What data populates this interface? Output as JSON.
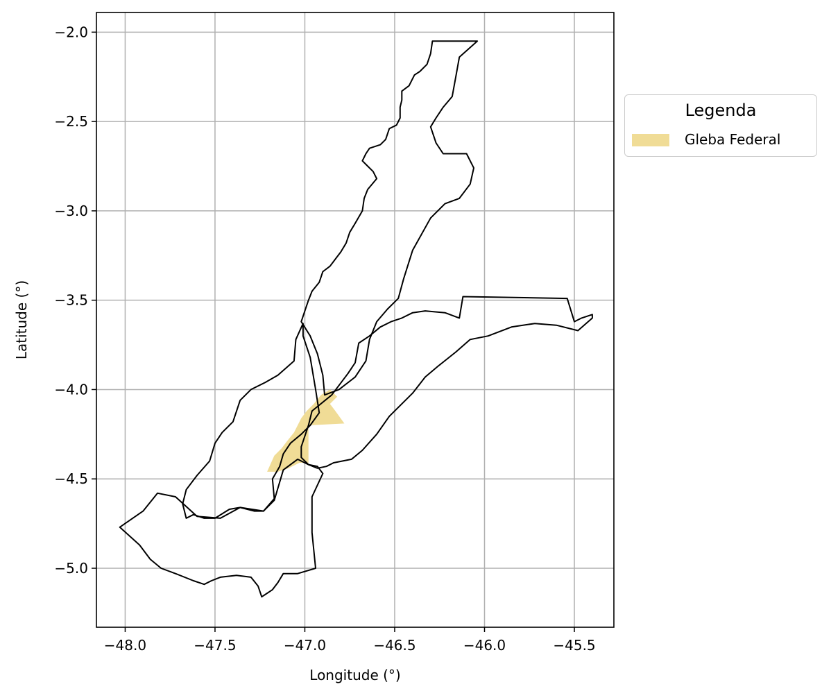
{
  "chart_data": {
    "type": "map",
    "xlabel": "Longitude (°)",
    "ylabel": "Latitude (°)",
    "xlim": [
      -48.16,
      -45.28
    ],
    "ylim": [
      -5.33,
      -1.89
    ],
    "xticks": [
      -48.0,
      -47.5,
      -47.0,
      -46.5,
      -46.0,
      -45.5
    ],
    "yticks": [
      -2.0,
      -2.5,
      -3.0,
      -3.5,
      -4.0,
      -4.5,
      -5.0
    ],
    "xtick_labels": [
      "−48.0",
      "−47.5",
      "−47.0",
      "−46.5",
      "−46.0",
      "−45.5"
    ],
    "ytick_labels": [
      "−2.0",
      "−2.5",
      "−3.0",
      "−3.5",
      "−4.0",
      "−4.5",
      "−5.0"
    ],
    "grid": true,
    "legend": {
      "title": "Legenda",
      "placement": "outside-right",
      "entries": [
        {
          "label": "Gleba Federal",
          "color": "#f0dc96"
        }
      ]
    },
    "boundary_color": "#000000",
    "boundaries": [
      {
        "name": "northern-municipality",
        "coords": [
          [
            -46.04,
            -2.05
          ],
          [
            -46.29,
            -2.05
          ],
          [
            -46.3,
            -2.12
          ],
          [
            -46.32,
            -2.18
          ],
          [
            -46.36,
            -2.22
          ],
          [
            -46.39,
            -2.24
          ],
          [
            -46.42,
            -2.3
          ],
          [
            -46.46,
            -2.33
          ],
          [
            -46.46,
            -2.38
          ],
          [
            -46.47,
            -2.42
          ],
          [
            -46.47,
            -2.48
          ],
          [
            -46.49,
            -2.52
          ],
          [
            -46.53,
            -2.54
          ],
          [
            -46.55,
            -2.6
          ],
          [
            -46.58,
            -2.63
          ],
          [
            -46.64,
            -2.65
          ],
          [
            -46.66,
            -2.68
          ],
          [
            -46.68,
            -2.72
          ],
          [
            -46.65,
            -2.75
          ],
          [
            -46.62,
            -2.78
          ],
          [
            -46.6,
            -2.82
          ],
          [
            -46.65,
            -2.88
          ],
          [
            -46.67,
            -2.93
          ],
          [
            -46.68,
            -3.0
          ],
          [
            -46.72,
            -3.07
          ],
          [
            -46.75,
            -3.12
          ],
          [
            -46.77,
            -3.18
          ],
          [
            -46.8,
            -3.23
          ],
          [
            -46.83,
            -3.27
          ],
          [
            -46.86,
            -3.31
          ],
          [
            -46.9,
            -3.34
          ],
          [
            -46.92,
            -3.4
          ],
          [
            -46.96,
            -3.45
          ],
          [
            -46.98,
            -3.5
          ],
          [
            -47.0,
            -3.56
          ],
          [
            -47.02,
            -3.62
          ],
          [
            -46.97,
            -3.7
          ],
          [
            -46.93,
            -3.8
          ],
          [
            -46.9,
            -3.92
          ],
          [
            -46.89,
            -4.03
          ],
          [
            -46.81,
            -4.0
          ],
          [
            -46.72,
            -3.93
          ],
          [
            -46.66,
            -3.84
          ],
          [
            -46.64,
            -3.72
          ],
          [
            -46.6,
            -3.62
          ],
          [
            -46.54,
            -3.55
          ],
          [
            -46.48,
            -3.49
          ],
          [
            -46.45,
            -3.38
          ],
          [
            -46.4,
            -3.22
          ],
          [
            -46.3,
            -3.04
          ],
          [
            -46.22,
            -2.96
          ],
          [
            -46.14,
            -2.93
          ],
          [
            -46.08,
            -2.85
          ],
          [
            -46.06,
            -2.76
          ],
          [
            -46.1,
            -2.68
          ],
          [
            -46.23,
            -2.68
          ],
          [
            -46.27,
            -2.62
          ],
          [
            -46.3,
            -2.53
          ],
          [
            -46.27,
            -2.48
          ],
          [
            -46.23,
            -2.42
          ],
          [
            -46.18,
            -2.36
          ],
          [
            -46.16,
            -2.25
          ],
          [
            -46.14,
            -2.14
          ],
          [
            -46.04,
            -2.05
          ]
        ]
      },
      {
        "name": "eastern-municipality",
        "coords": [
          [
            -45.4,
            -3.58
          ],
          [
            -45.46,
            -3.6
          ],
          [
            -45.5,
            -3.62
          ],
          [
            -45.54,
            -3.49
          ],
          [
            -46.12,
            -3.48
          ],
          [
            -46.14,
            -3.6
          ],
          [
            -46.22,
            -3.57
          ],
          [
            -46.33,
            -3.56
          ],
          [
            -46.4,
            -3.57
          ],
          [
            -46.46,
            -3.6
          ],
          [
            -46.52,
            -3.62
          ],
          [
            -46.58,
            -3.65
          ],
          [
            -46.64,
            -3.7
          ],
          [
            -46.7,
            -3.74
          ],
          [
            -46.72,
            -3.85
          ],
          [
            -46.76,
            -3.91
          ],
          [
            -46.85,
            -4.03
          ],
          [
            -46.96,
            -4.12
          ],
          [
            -46.98,
            -4.2
          ],
          [
            -47.0,
            -4.26
          ],
          [
            -47.02,
            -4.32
          ],
          [
            -47.02,
            -4.38
          ],
          [
            -46.98,
            -4.42
          ],
          [
            -46.93,
            -4.44
          ],
          [
            -46.88,
            -4.43
          ],
          [
            -46.84,
            -4.41
          ],
          [
            -46.74,
            -4.39
          ],
          [
            -46.68,
            -4.34
          ],
          [
            -46.6,
            -4.25
          ],
          [
            -46.53,
            -4.15
          ],
          [
            -46.4,
            -4.02
          ],
          [
            -46.33,
            -3.93
          ],
          [
            -46.26,
            -3.87
          ],
          [
            -46.16,
            -3.79
          ],
          [
            -46.08,
            -3.72
          ],
          [
            -45.98,
            -3.7
          ],
          [
            -45.85,
            -3.65
          ],
          [
            -45.72,
            -3.63
          ],
          [
            -45.6,
            -3.64
          ],
          [
            -45.48,
            -3.67
          ],
          [
            -45.4,
            -3.6
          ],
          [
            -45.4,
            -3.58
          ]
        ]
      },
      {
        "name": "western-municipality",
        "coords": [
          [
            -47.01,
            -3.63
          ],
          [
            -47.05,
            -3.72
          ],
          [
            -47.06,
            -3.84
          ],
          [
            -47.15,
            -3.92
          ],
          [
            -47.22,
            -3.96
          ],
          [
            -47.3,
            -4.0
          ],
          [
            -47.36,
            -4.06
          ],
          [
            -47.4,
            -4.18
          ],
          [
            -47.46,
            -4.24
          ],
          [
            -47.5,
            -4.3
          ],
          [
            -47.53,
            -4.4
          ],
          [
            -47.6,
            -4.48
          ],
          [
            -47.66,
            -4.56
          ],
          [
            -47.68,
            -4.64
          ],
          [
            -47.66,
            -4.72
          ],
          [
            -47.62,
            -4.7
          ],
          [
            -47.56,
            -4.72
          ],
          [
            -47.5,
            -4.72
          ],
          [
            -47.42,
            -4.67
          ],
          [
            -47.36,
            -4.66
          ],
          [
            -47.28,
            -4.68
          ],
          [
            -47.23,
            -4.68
          ],
          [
            -47.17,
            -4.61
          ],
          [
            -47.18,
            -4.5
          ],
          [
            -47.14,
            -4.43
          ],
          [
            -47.12,
            -4.36
          ],
          [
            -47.08,
            -4.3
          ],
          [
            -47.02,
            -4.25
          ],
          [
            -46.97,
            -4.2
          ],
          [
            -46.92,
            -4.13
          ],
          [
            -46.94,
            -4.0
          ],
          [
            -46.97,
            -3.82
          ],
          [
            -47.01,
            -3.7
          ],
          [
            -47.01,
            -3.63
          ]
        ]
      },
      {
        "name": "southern-municipality",
        "coords": [
          [
            -48.03,
            -4.77
          ],
          [
            -47.9,
            -4.68
          ],
          [
            -47.82,
            -4.58
          ],
          [
            -47.72,
            -4.6
          ],
          [
            -47.6,
            -4.71
          ],
          [
            -47.47,
            -4.72
          ],
          [
            -47.36,
            -4.66
          ],
          [
            -47.23,
            -4.68
          ],
          [
            -47.17,
            -4.62
          ],
          [
            -47.12,
            -4.45
          ],
          [
            -47.04,
            -4.39
          ],
          [
            -46.98,
            -4.42
          ],
          [
            -46.93,
            -4.43
          ],
          [
            -46.9,
            -4.47
          ],
          [
            -46.96,
            -4.6
          ],
          [
            -46.96,
            -4.8
          ],
          [
            -46.95,
            -4.9
          ],
          [
            -46.94,
            -5.0
          ],
          [
            -47.04,
            -5.03
          ],
          [
            -47.12,
            -5.03
          ],
          [
            -47.15,
            -5.08
          ],
          [
            -47.18,
            -5.12
          ],
          [
            -47.24,
            -5.16
          ],
          [
            -47.26,
            -5.1
          ],
          [
            -47.3,
            -5.05
          ],
          [
            -47.38,
            -5.04
          ],
          [
            -47.47,
            -5.05
          ],
          [
            -47.52,
            -5.07
          ],
          [
            -47.56,
            -5.09
          ],
          [
            -47.62,
            -5.07
          ],
          [
            -47.72,
            -5.03
          ],
          [
            -47.8,
            -5.0
          ],
          [
            -47.86,
            -4.95
          ],
          [
            -47.92,
            -4.87
          ],
          [
            -48.03,
            -4.77
          ]
        ]
      }
    ],
    "regions": [
      {
        "name": "Gleba Federal",
        "color": "#f0dc96",
        "coords": [
          [
            -46.86,
            -4.0
          ],
          [
            -46.91,
            -4.03
          ],
          [
            -46.95,
            -4.08
          ],
          [
            -46.99,
            -4.12
          ],
          [
            -47.02,
            -4.16
          ],
          [
            -47.06,
            -4.24
          ],
          [
            -47.1,
            -4.29
          ],
          [
            -47.13,
            -4.33
          ],
          [
            -47.17,
            -4.37
          ],
          [
            -47.21,
            -4.46
          ],
          [
            -47.15,
            -4.46
          ],
          [
            -47.09,
            -4.44
          ],
          [
            -47.03,
            -4.41
          ],
          [
            -46.98,
            -4.41
          ],
          [
            -46.98,
            -4.2
          ],
          [
            -46.78,
            -4.19
          ],
          [
            -46.83,
            -4.12
          ],
          [
            -46.86,
            -4.08
          ],
          [
            -46.82,
            -4.04
          ],
          [
            -46.86,
            -4.0
          ]
        ]
      }
    ]
  }
}
